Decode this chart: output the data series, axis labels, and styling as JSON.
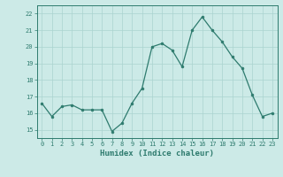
{
  "x": [
    0,
    1,
    2,
    3,
    4,
    5,
    6,
    7,
    8,
    9,
    10,
    11,
    12,
    13,
    14,
    15,
    16,
    17,
    18,
    19,
    20,
    21,
    22,
    23
  ],
  "y": [
    16.6,
    15.8,
    16.4,
    16.5,
    16.2,
    16.2,
    16.2,
    14.9,
    15.4,
    16.6,
    17.5,
    20.0,
    20.2,
    19.8,
    18.8,
    21.0,
    21.8,
    21.0,
    20.3,
    19.4,
    18.7,
    17.1,
    15.8,
    16.0
  ],
  "line_color": "#2e7b6e",
  "marker_color": "#2e7b6e",
  "bg_color": "#cceae7",
  "grid_color": "#aad4d0",
  "axis_label_color": "#2e7b6e",
  "tick_color": "#2e7b6e",
  "xlabel": "Humidex (Indice chaleur)",
  "ylim": [
    14.5,
    22.5
  ],
  "xlim": [
    -0.5,
    23.5
  ],
  "yticks": [
    15,
    16,
    17,
    18,
    19,
    20,
    21,
    22
  ],
  "xticks": [
    0,
    1,
    2,
    3,
    4,
    5,
    6,
    7,
    8,
    9,
    10,
    11,
    12,
    13,
    14,
    15,
    16,
    17,
    18,
    19,
    20,
    21,
    22,
    23
  ]
}
